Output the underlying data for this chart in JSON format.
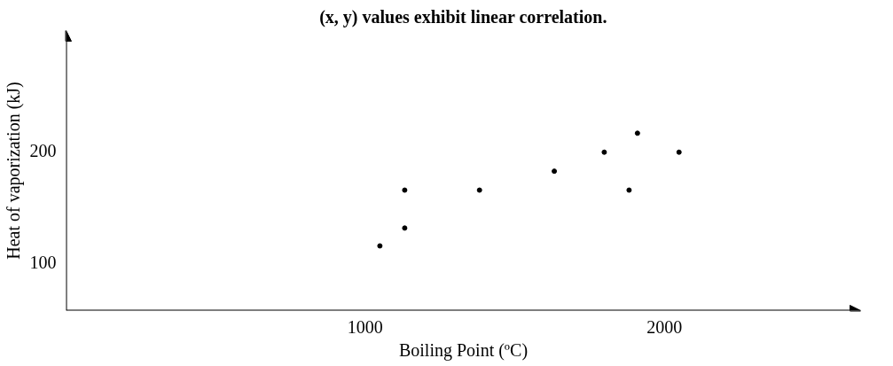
{
  "chart_data": {
    "type": "scatter",
    "title": "(x, y) values exhibit linear correlation.",
    "xlabel": "Boiling Point (ºC)",
    "ylabel": "Heat of vaporization (kJ)",
    "x": [
      1049,
      1132,
      1132,
      1382,
      1632,
      1799,
      1882,
      1910,
      2049
    ],
    "values": [
      115,
      131,
      165,
      165,
      182,
      199,
      165,
      216,
      199
    ],
    "color": "#000000",
    "marker": "circle",
    "grid": false,
    "xlim": [
      0,
      2656
    ],
    "ylim": [
      57,
      308
    ],
    "xticks": [
      1000,
      2000
    ],
    "yticks": [
      100,
      200
    ]
  }
}
